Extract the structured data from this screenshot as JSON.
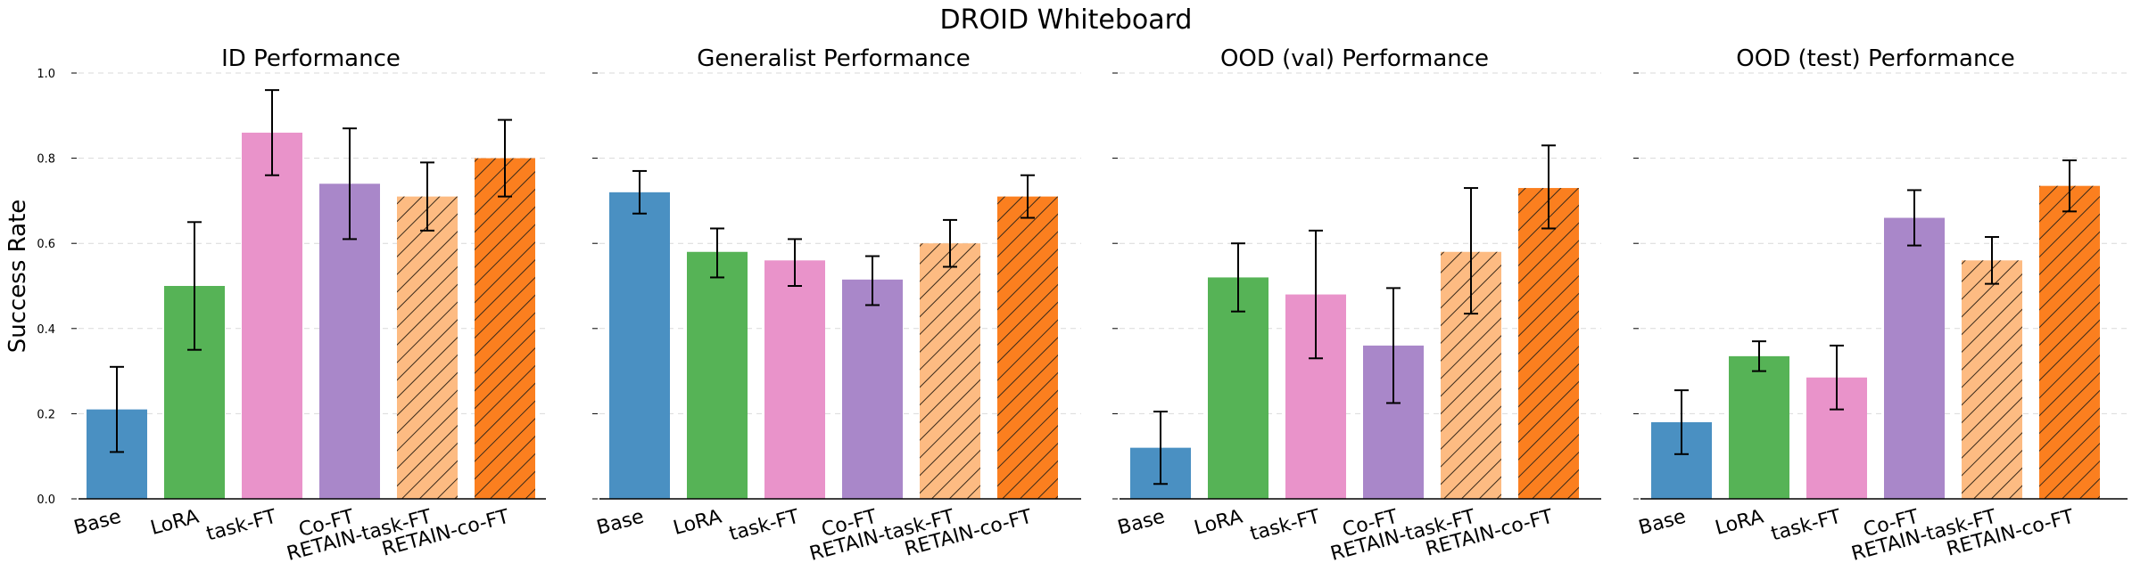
{
  "figure_title": "DROID Whiteboard",
  "shared_ylabel": "Success Rate",
  "methods": [
    "Base",
    "LoRA",
    "task-FT",
    "Co-FT",
    "RETAIN-task-FT",
    "RETAIN-co-FT"
  ],
  "colors": {
    "Base": "#4a90c2",
    "LoRA": "#56b356",
    "task-FT": "#e993ca",
    "Co-FT": "#a987c9",
    "RETAIN-task-FT": "#fdbb82",
    "RETAIN-co-FT": "#fb7f1f",
    "hatch": "#3a2a1a"
  },
  "chart_data": [
    {
      "type": "bar",
      "title": "ID Performance",
      "categories": [
        "Base",
        "LoRA",
        "task-FT",
        "Co-FT",
        "RETAIN-task-FT",
        "RETAIN-co-FT"
      ],
      "values": [
        0.21,
        0.5,
        0.86,
        0.74,
        0.71,
        0.8
      ],
      "err_low": [
        0.11,
        0.35,
        0.76,
        0.61,
        0.63,
        0.71
      ],
      "err_high": [
        0.31,
        0.65,
        0.96,
        0.87,
        0.79,
        0.89
      ],
      "hatched": [
        false,
        false,
        false,
        false,
        true,
        true
      ],
      "ylabel": "Success Rate",
      "ylim": [
        0,
        1.0
      ],
      "yticks": [
        "0.0",
        "0.2",
        "0.4",
        "0.6",
        "0.8",
        "1.0"
      ],
      "grid": true
    },
    {
      "type": "bar",
      "title": "Generalist Performance",
      "categories": [
        "Base",
        "LoRA",
        "task-FT",
        "Co-FT",
        "RETAIN-task-FT",
        "RETAIN-co-FT"
      ],
      "values": [
        0.72,
        0.58,
        0.56,
        0.515,
        0.6,
        0.71
      ],
      "err_low": [
        0.67,
        0.52,
        0.5,
        0.455,
        0.545,
        0.66
      ],
      "err_high": [
        0.77,
        0.635,
        0.61,
        0.57,
        0.655,
        0.76
      ],
      "hatched": [
        false,
        false,
        false,
        false,
        true,
        true
      ],
      "ylim": [
        0,
        1.0
      ],
      "grid": true
    },
    {
      "type": "bar",
      "title": "OOD (val) Performance",
      "categories": [
        "Base",
        "LoRA",
        "task-FT",
        "Co-FT",
        "RETAIN-task-FT",
        "RETAIN-co-FT"
      ],
      "values": [
        0.12,
        0.52,
        0.48,
        0.36,
        0.58,
        0.73
      ],
      "err_low": [
        0.035,
        0.44,
        0.33,
        0.225,
        0.435,
        0.635
      ],
      "err_high": [
        0.205,
        0.6,
        0.63,
        0.495,
        0.73,
        0.83
      ],
      "hatched": [
        false,
        false,
        false,
        false,
        true,
        true
      ],
      "ylim": [
        0,
        1.0
      ],
      "grid": true
    },
    {
      "type": "bar",
      "title": "OOD (test) Performance",
      "categories": [
        "Base",
        "LoRA",
        "task-FT",
        "Co-FT",
        "RETAIN-task-FT",
        "RETAIN-co-FT"
      ],
      "values": [
        0.18,
        0.335,
        0.285,
        0.66,
        0.56,
        0.735
      ],
      "err_low": [
        0.105,
        0.3,
        0.21,
        0.595,
        0.505,
        0.675
      ],
      "err_high": [
        0.255,
        0.37,
        0.36,
        0.725,
        0.615,
        0.795
      ],
      "hatched": [
        false,
        false,
        false,
        false,
        true,
        true
      ],
      "ylim": [
        0,
        1.0
      ],
      "grid": true
    }
  ]
}
